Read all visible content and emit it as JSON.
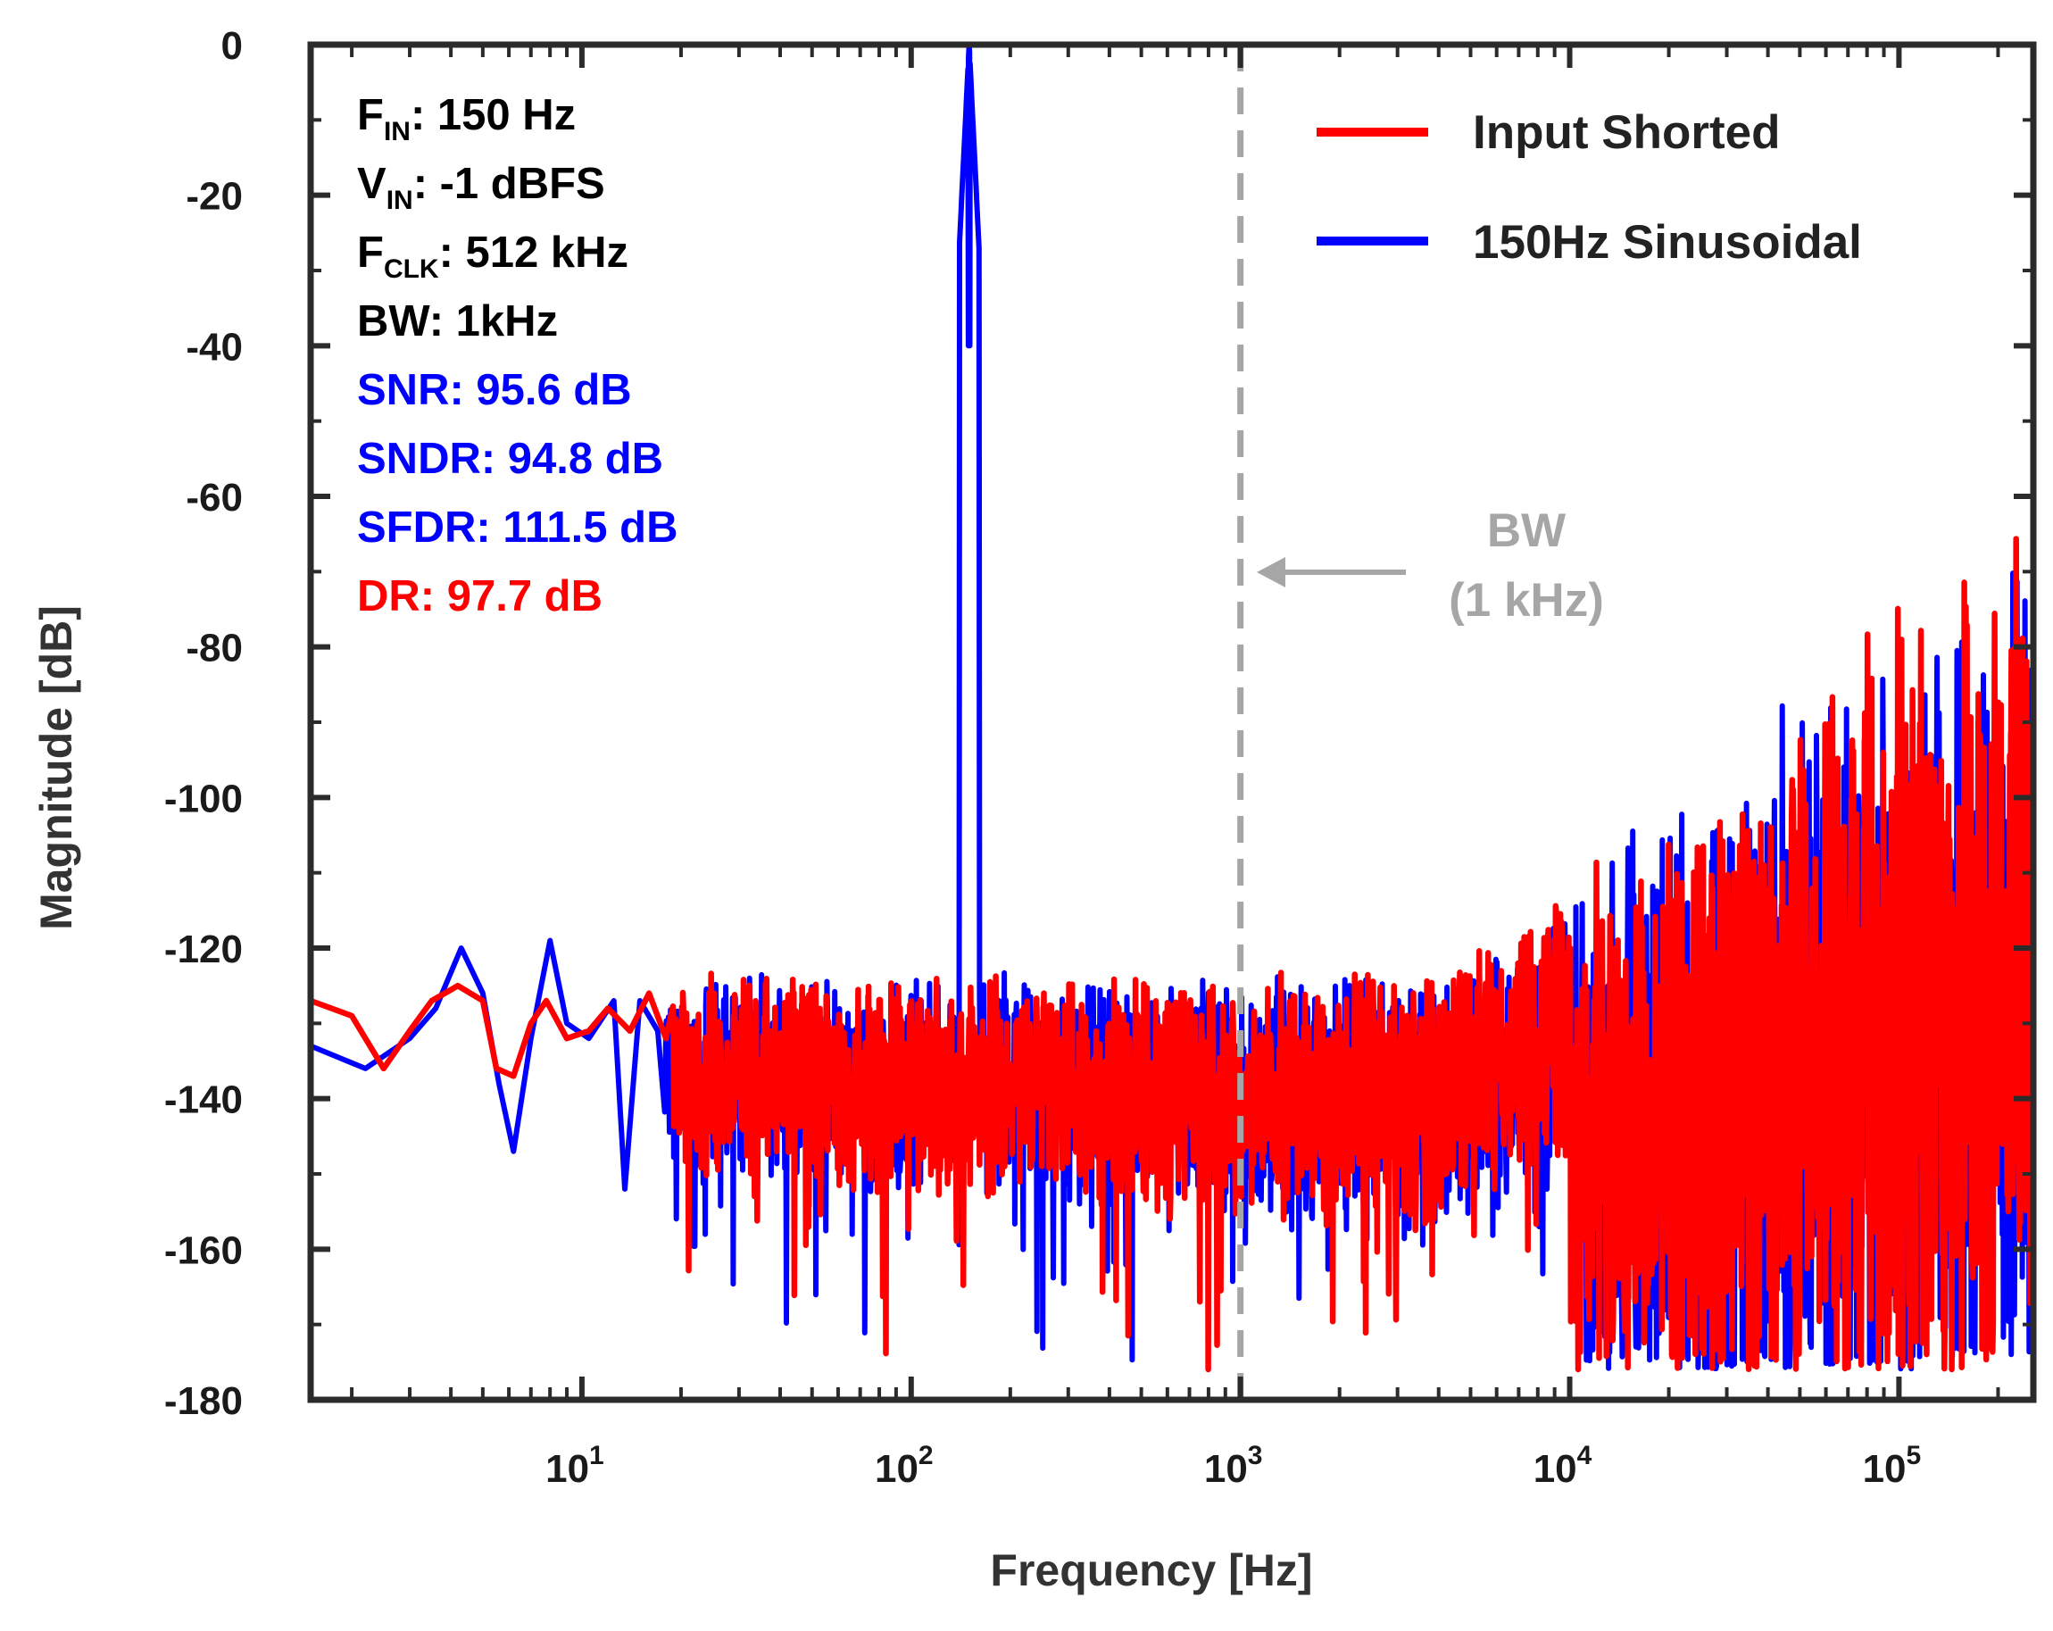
{
  "chart_data": {
    "type": "line",
    "xlabel": "Frequency [Hz]",
    "ylabel": "Magnitude [dB]",
    "xscale": "log",
    "xlim": [
      1.5,
      256000
    ],
    "ylim": [
      -180,
      0
    ],
    "grid": false,
    "legend_placement": "top-right",
    "y_ticks": [
      0,
      -20,
      -40,
      -60,
      -80,
      -100,
      -120,
      -140,
      -160,
      -180
    ],
    "y_tick_labels": [
      "0",
      "-20",
      "-40",
      "-60",
      "-80",
      "-100",
      "-120",
      "-140",
      "-160",
      "-180"
    ],
    "x_ticks": [
      {
        "value": 10,
        "base": "10",
        "exp": "1"
      },
      {
        "value": 100,
        "base": "10",
        "exp": "2"
      },
      {
        "value": 1000,
        "base": "10",
        "exp": "3"
      },
      {
        "value": 10000,
        "base": "10",
        "exp": "4"
      },
      {
        "value": 100000,
        "base": "10",
        "exp": "5"
      }
    ],
    "series": [
      {
        "name": "Input Shorted",
        "color": "#ff0000",
        "floor_in_band_db": -130,
        "peak_db_at_256khz": -60,
        "noise_shaping_corner_hz": 5000,
        "points": [
          [
            1.5,
            -127
          ],
          [
            2.0,
            -129
          ],
          [
            2.5,
            -136
          ],
          [
            3.0,
            -131
          ],
          [
            3.5,
            -127
          ],
          [
            4.2,
            -125
          ],
          [
            5.0,
            -127
          ],
          [
            5.5,
            -136
          ],
          [
            6.2,
            -137
          ],
          [
            7.0,
            -130
          ],
          [
            7.8,
            -127
          ],
          [
            9.0,
            -132
          ],
          [
            10.5,
            -131
          ],
          [
            12.0,
            -128
          ],
          [
            14.0,
            -131
          ],
          [
            16.0,
            -126
          ],
          [
            18.0,
            -132
          ]
        ]
      },
      {
        "name": "150Hz Sinusoidal",
        "color": "#0000ff",
        "signal_hz": 150,
        "signal_db": 0,
        "floor_in_band_db": -130,
        "points": [
          [
            1.5,
            -133
          ],
          [
            2.2,
            -136
          ],
          [
            3.0,
            -132
          ],
          [
            3.6,
            -128
          ],
          [
            4.3,
            -120
          ],
          [
            5.0,
            -126
          ],
          [
            5.6,
            -138
          ],
          [
            6.2,
            -147
          ],
          [
            7.0,
            -132
          ],
          [
            8.0,
            -119
          ],
          [
            9.0,
            -130
          ],
          [
            10.5,
            -132
          ],
          [
            12.5,
            -127
          ],
          [
            13.5,
            -152
          ],
          [
            15.0,
            -127
          ],
          [
            17.0,
            -131
          ]
        ]
      }
    ],
    "annotations": {
      "fin": {
        "main": "F",
        "sub": "IN",
        "rest": ": 150 Hz",
        "color": "#000000"
      },
      "vin": {
        "main": "V",
        "sub": "IN",
        "rest": ": -1 dBFS",
        "color": "#000000"
      },
      "fclk": {
        "main": "F",
        "sub": "CLK",
        "rest": ": 512 kHz",
        "color": "#000000"
      },
      "bw": {
        "text": "BW: 1kHz",
        "color": "#000000"
      },
      "snr": {
        "text": "SNR: 95.6 dB",
        "color": "#0000ff"
      },
      "sndr": {
        "text": "SNDR: 94.8 dB",
        "color": "#0000ff"
      },
      "sfdr": {
        "text": "SFDR: 111.5 dB",
        "color": "#0000ff"
      },
      "dr": {
        "text": "DR: 97.7 dB",
        "color": "#ff0000"
      }
    },
    "bw_marker": {
      "x": 1000,
      "label_line1": "BW",
      "label_line2": "(1 kHz)",
      "color": "#a6a6a6"
    }
  }
}
